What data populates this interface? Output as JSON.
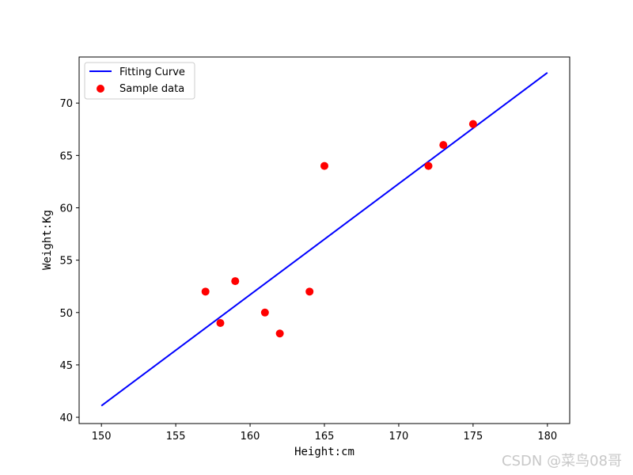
{
  "chart_data": {
    "type": "scatter",
    "xlabel": "Height:cm",
    "ylabel": "Weight:Kg",
    "xlim": [
      148.5,
      181.5
    ],
    "ylim": [
      39.4,
      74.4
    ],
    "x_ticks": [
      150,
      155,
      160,
      165,
      170,
      175,
      180
    ],
    "y_ticks": [
      40,
      45,
      50,
      55,
      60,
      65,
      70
    ],
    "grid": false,
    "legend_position": "top-left",
    "series": [
      {
        "name": "Fitting Curve",
        "kind": "line",
        "color": "#0000ff",
        "x": [
          150,
          180
        ],
        "y": [
          41.1,
          72.9
        ]
      },
      {
        "name": "Sample data",
        "kind": "scatter",
        "color": "#ff0000",
        "x": [
          157,
          158,
          159,
          161,
          162,
          164,
          165,
          172,
          173,
          175
        ],
        "y": [
          52,
          49,
          53,
          50,
          48,
          52,
          64,
          64,
          66,
          68
        ]
      }
    ]
  },
  "watermark": "CSDN @菜鸟08哥"
}
